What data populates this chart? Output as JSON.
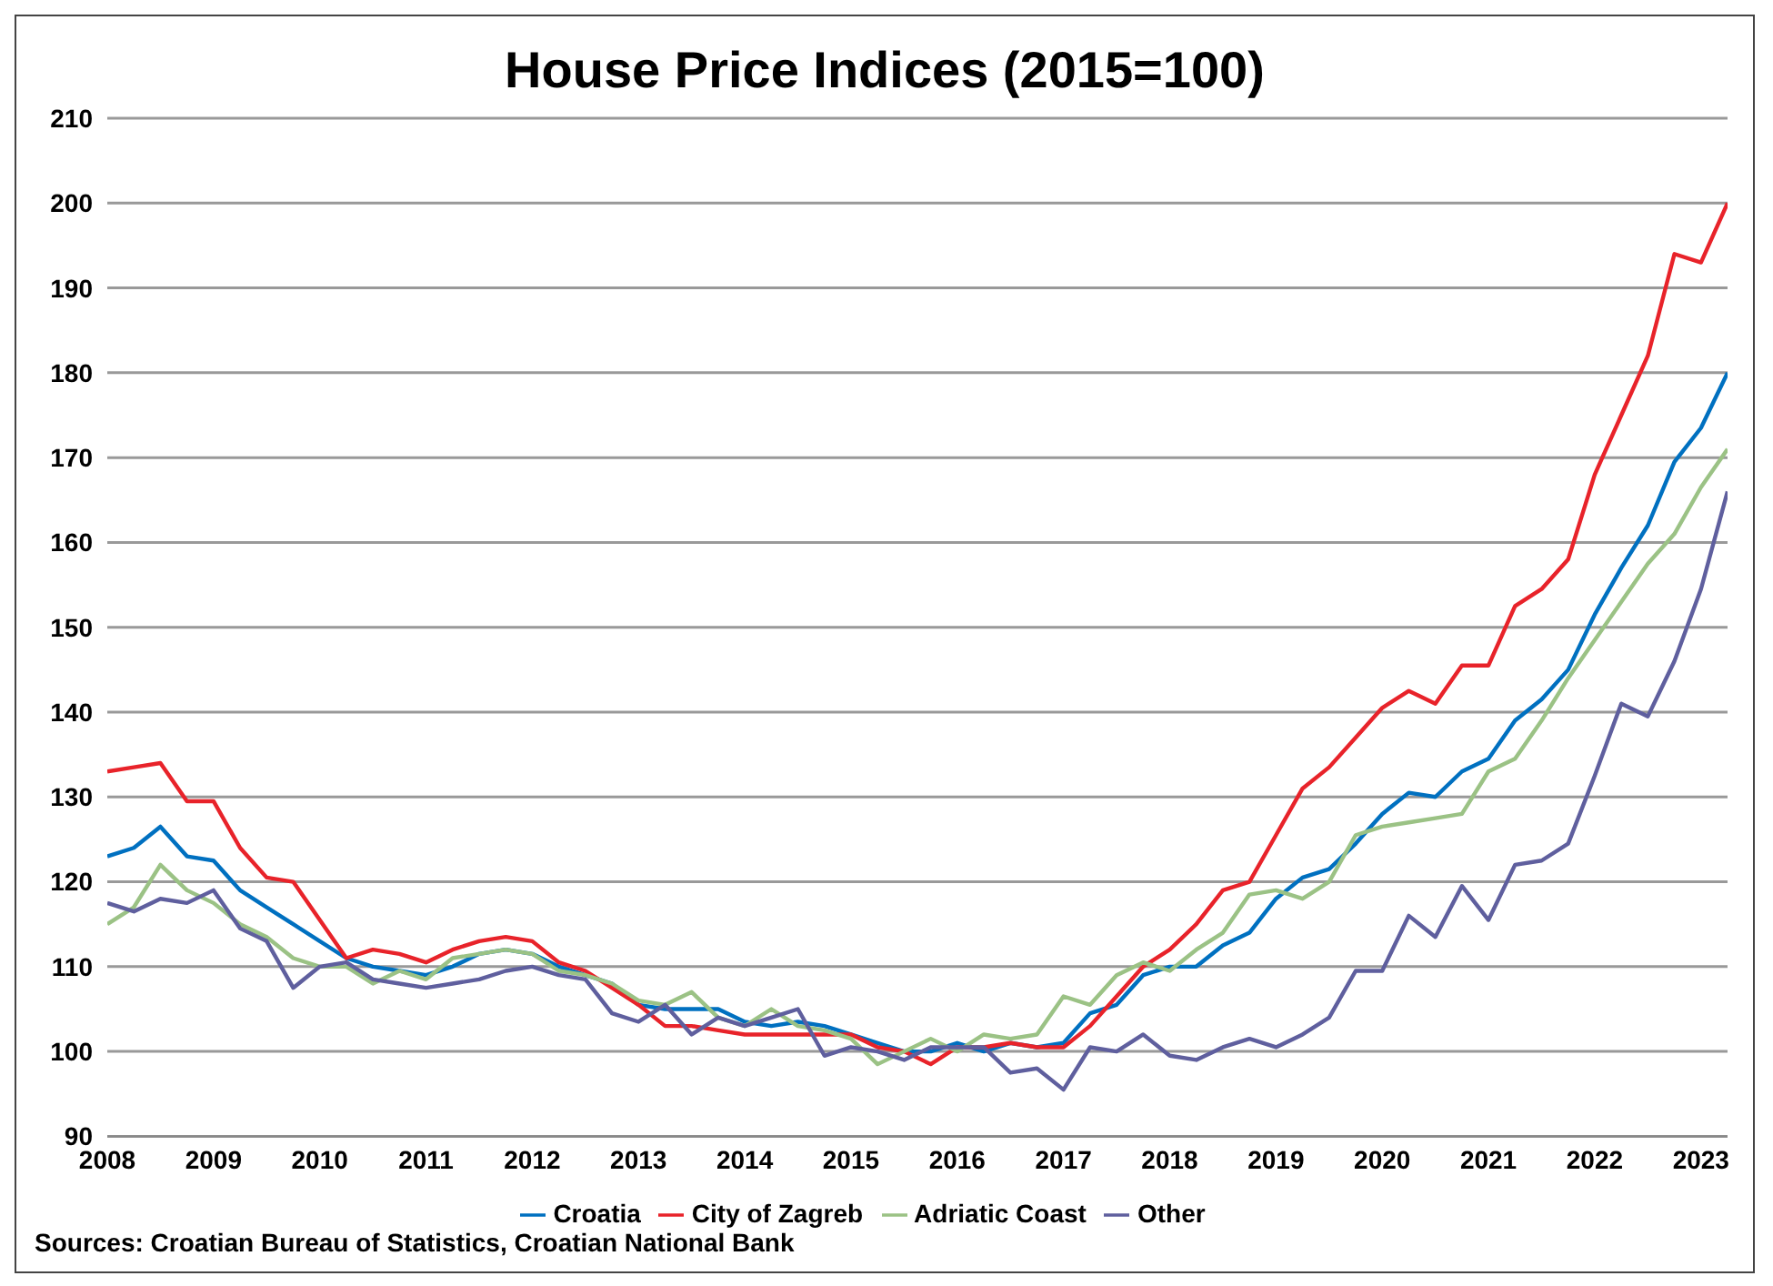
{
  "chart_data": {
    "type": "line",
    "title": "House Price Indices (2015=100)",
    "x": [
      2008,
      2008.25,
      2008.5,
      2008.75,
      2009,
      2009.25,
      2009.5,
      2009.75,
      2010,
      2010.25,
      2010.5,
      2010.75,
      2011,
      2011.25,
      2011.5,
      2011.75,
      2012,
      2012.25,
      2012.5,
      2012.75,
      2013,
      2013.25,
      2013.5,
      2013.75,
      2014,
      2014.25,
      2014.5,
      2014.75,
      2015,
      2015.25,
      2015.5,
      2015.75,
      2016,
      2016.25,
      2016.5,
      2016.75,
      2017,
      2017.25,
      2017.5,
      2017.75,
      2018,
      2018.25,
      2018.5,
      2018.75,
      2019,
      2019.25,
      2019.5,
      2019.75,
      2020,
      2020.25,
      2020.5,
      2020.75,
      2021,
      2021.25,
      2021.5,
      2021.75,
      2022,
      2022.25,
      2022.5,
      2022.75,
      2023,
      2023.25
    ],
    "series": [
      {
        "name": "Croatia",
        "color": "#0070c0",
        "values": [
          123,
          124,
          126.5,
          123,
          122.5,
          119,
          117,
          115,
          113,
          111,
          110,
          109.5,
          109,
          110,
          111.5,
          112,
          111.5,
          110,
          109,
          108,
          105.5,
          105,
          105,
          105,
          103.5,
          103,
          103.5,
          103,
          102,
          101,
          100,
          100,
          101,
          100,
          101,
          100.5,
          101,
          104.5,
          105.5,
          109,
          110,
          110,
          112.5,
          114,
          118,
          120.5,
          121.5,
          124.5,
          128,
          130.5,
          130,
          133,
          134.5,
          139,
          141.5,
          145,
          151.5,
          157,
          162,
          169.5,
          173.5,
          180
        ]
      },
      {
        "name": "City of Zagreb",
        "color": "#e8232a",
        "values": [
          133,
          133.5,
          134,
          129.5,
          129.5,
          124,
          120.5,
          120,
          115.5,
          111,
          112,
          111.5,
          110.5,
          112,
          113,
          113.5,
          113,
          110.5,
          109.5,
          107.5,
          105.5,
          103,
          103,
          102.5,
          102,
          102,
          102,
          102,
          102,
          100.5,
          100,
          98.5,
          100.5,
          100.5,
          101,
          100.5,
          100.5,
          103,
          106.5,
          110,
          112,
          115,
          119,
          120,
          125.5,
          131,
          133.5,
          137,
          140.5,
          142.5,
          141,
          145.5,
          145.5,
          152.5,
          154.5,
          158,
          168,
          175,
          182,
          194,
          193,
          200
        ]
      },
      {
        "name": "Adriatic Coast",
        "color": "#9bc285",
        "values": [
          115,
          117,
          122,
          119,
          117.5,
          115,
          113.5,
          111,
          110,
          110,
          108,
          109.5,
          108.5,
          111,
          111.5,
          112,
          111.5,
          109.5,
          109,
          108,
          106,
          105.5,
          107,
          104,
          103,
          105,
          103,
          102.5,
          101.5,
          98.5,
          100,
          101.5,
          100,
          102,
          101.5,
          102,
          106.5,
          105.5,
          109,
          110.5,
          109.5,
          112,
          114,
          118.5,
          119,
          118,
          120,
          125.5,
          126.5,
          127,
          127.5,
          128,
          133,
          134.5,
          139,
          144,
          148.5,
          153,
          157.5,
          161,
          166.5,
          171
        ]
      },
      {
        "name": "Other",
        "color": "#5f5f9e",
        "values": [
          117.5,
          116.5,
          118,
          117.5,
          119,
          114.5,
          113,
          107.5,
          110,
          110.5,
          108.5,
          108,
          107.5,
          108,
          108.5,
          109.5,
          110,
          109,
          108.5,
          104.5,
          103.5,
          105.5,
          102,
          104,
          103,
          104,
          105,
          99.5,
          100.5,
          100,
          99,
          100.5,
          100.5,
          100.5,
          97.5,
          98,
          95.5,
          100.5,
          100,
          102,
          99.5,
          99,
          100.5,
          101.5,
          100.5,
          102,
          104,
          109.5,
          109.5,
          116,
          113.5,
          119.5,
          115.5,
          122,
          122.5,
          124.5,
          132.5,
          141,
          139.5,
          146,
          154.5,
          166
        ]
      }
    ],
    "xlim": [
      2008,
      2023.25
    ],
    "xticks": [
      2008,
      2009,
      2010,
      2011,
      2012,
      2013,
      2014,
      2015,
      2016,
      2017,
      2018,
      2019,
      2020,
      2021,
      2022,
      2023
    ],
    "ylim": [
      90,
      210
    ],
    "yticks": [
      90,
      100,
      110,
      120,
      130,
      140,
      150,
      160,
      170,
      180,
      190,
      200,
      210
    ],
    "grid": "y",
    "legend": "bottom",
    "marker": "none",
    "line_style": "solid",
    "annotations": [
      "Sources: Croatian Bureau of Statistics, Croatian National Bank"
    ]
  }
}
